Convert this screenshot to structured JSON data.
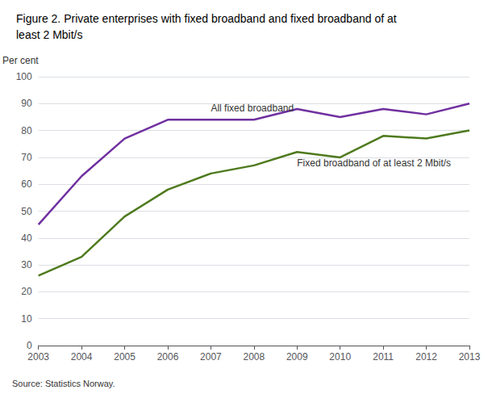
{
  "chart_data": {
    "type": "line",
    "title": "Figure 2. Private enterprises with fixed broadband and fixed broadband of at\nleast 2 Mbit/s",
    "ylabel": "Per cent",
    "annotations": [
      "Source: Statistics Norway."
    ],
    "x": [
      2003,
      2004,
      2005,
      2006,
      2007,
      2008,
      2009,
      2010,
      2011,
      2012,
      2013
    ],
    "series": [
      {
        "name": "All fixed broadband",
        "color": "#7030a0",
        "values": [
          45,
          63,
          77,
          84,
          84,
          84,
          88,
          85,
          88,
          86,
          90
        ]
      },
      {
        "name": "Fixed broadband of at least 2 Mbit/s",
        "color": "#4e7a1e",
        "values": [
          26,
          33,
          48,
          58,
          64,
          67,
          72,
          70,
          78,
          77,
          80
        ]
      }
    ],
    "xlim": [
      2003,
      2013
    ],
    "xticks": [
      2003,
      2004,
      2005,
      2006,
      2007,
      2008,
      2009,
      2010,
      2011,
      2012,
      2013
    ],
    "ylim": [
      0,
      100
    ],
    "yticks": [
      0,
      10,
      20,
      30,
      40,
      50,
      60,
      70,
      80,
      90,
      100
    ],
    "grid": true
  }
}
